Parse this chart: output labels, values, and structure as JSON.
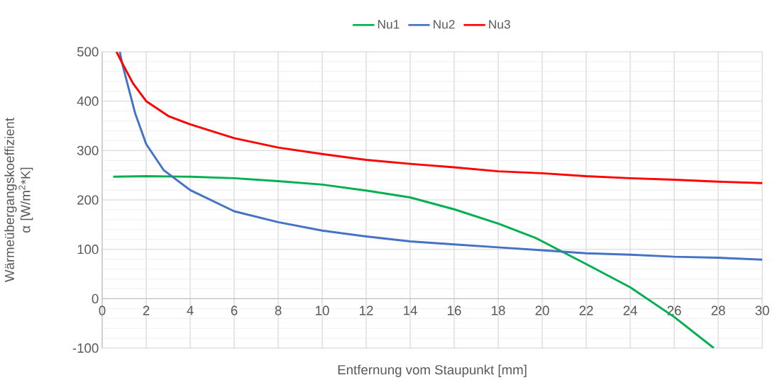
{
  "chart_data": {
    "type": "line",
    "xlabel": "Entfernung vom Staupunkt [mm]",
    "ylabel": "Wärmeübergangskoeffizient α [W/m$^{2}$*K]",
    "series": [
      {
        "name": "Nu1",
        "color": "#00b050",
        "x": [
          0.5,
          2,
          4,
          6,
          8,
          10,
          12,
          14,
          16,
          18,
          19.7,
          21,
          22,
          24,
          26,
          27.8
        ],
        "values": [
          247,
          248,
          247,
          244,
          238,
          231,
          219,
          205,
          181,
          152,
          123,
          93,
          70,
          23,
          -37,
          -100
        ]
      },
      {
        "name": "Nu2",
        "color": "#4472c4",
        "x": [
          0.8,
          0.9,
          1.5,
          2,
          2.8,
          4,
          6,
          8,
          10,
          12,
          14,
          16,
          18,
          20,
          22,
          24,
          26,
          28,
          30
        ],
        "values": [
          500,
          478,
          375,
          313,
          260,
          220,
          177,
          155,
          138,
          126,
          116,
          110,
          104,
          98,
          92,
          89,
          85,
          83,
          79
        ]
      },
      {
        "name": "Nu3",
        "color": "#ff0000",
        "x": [
          0.65,
          0.9,
          1.4,
          2,
          3,
          4,
          6,
          8,
          10,
          12,
          14,
          16,
          18,
          20,
          22,
          24,
          26,
          28,
          30
        ],
        "values": [
          500,
          478,
          436,
          400,
          370,
          353,
          325,
          306,
          293,
          281,
          273,
          266,
          258,
          254,
          248,
          244,
          241,
          237,
          234
        ]
      }
    ],
    "xlim": [
      0,
      30
    ],
    "ylim": [
      -100,
      500
    ],
    "xticks": [
      0,
      2,
      4,
      6,
      8,
      10,
      12,
      14,
      16,
      18,
      20,
      22,
      24,
      26,
      28,
      30
    ],
    "yticks": [
      -100,
      0,
      100,
      200,
      300,
      400,
      500
    ],
    "grid": true,
    "legend": "top",
    "marker": "none",
    "line_style": "solid"
  }
}
